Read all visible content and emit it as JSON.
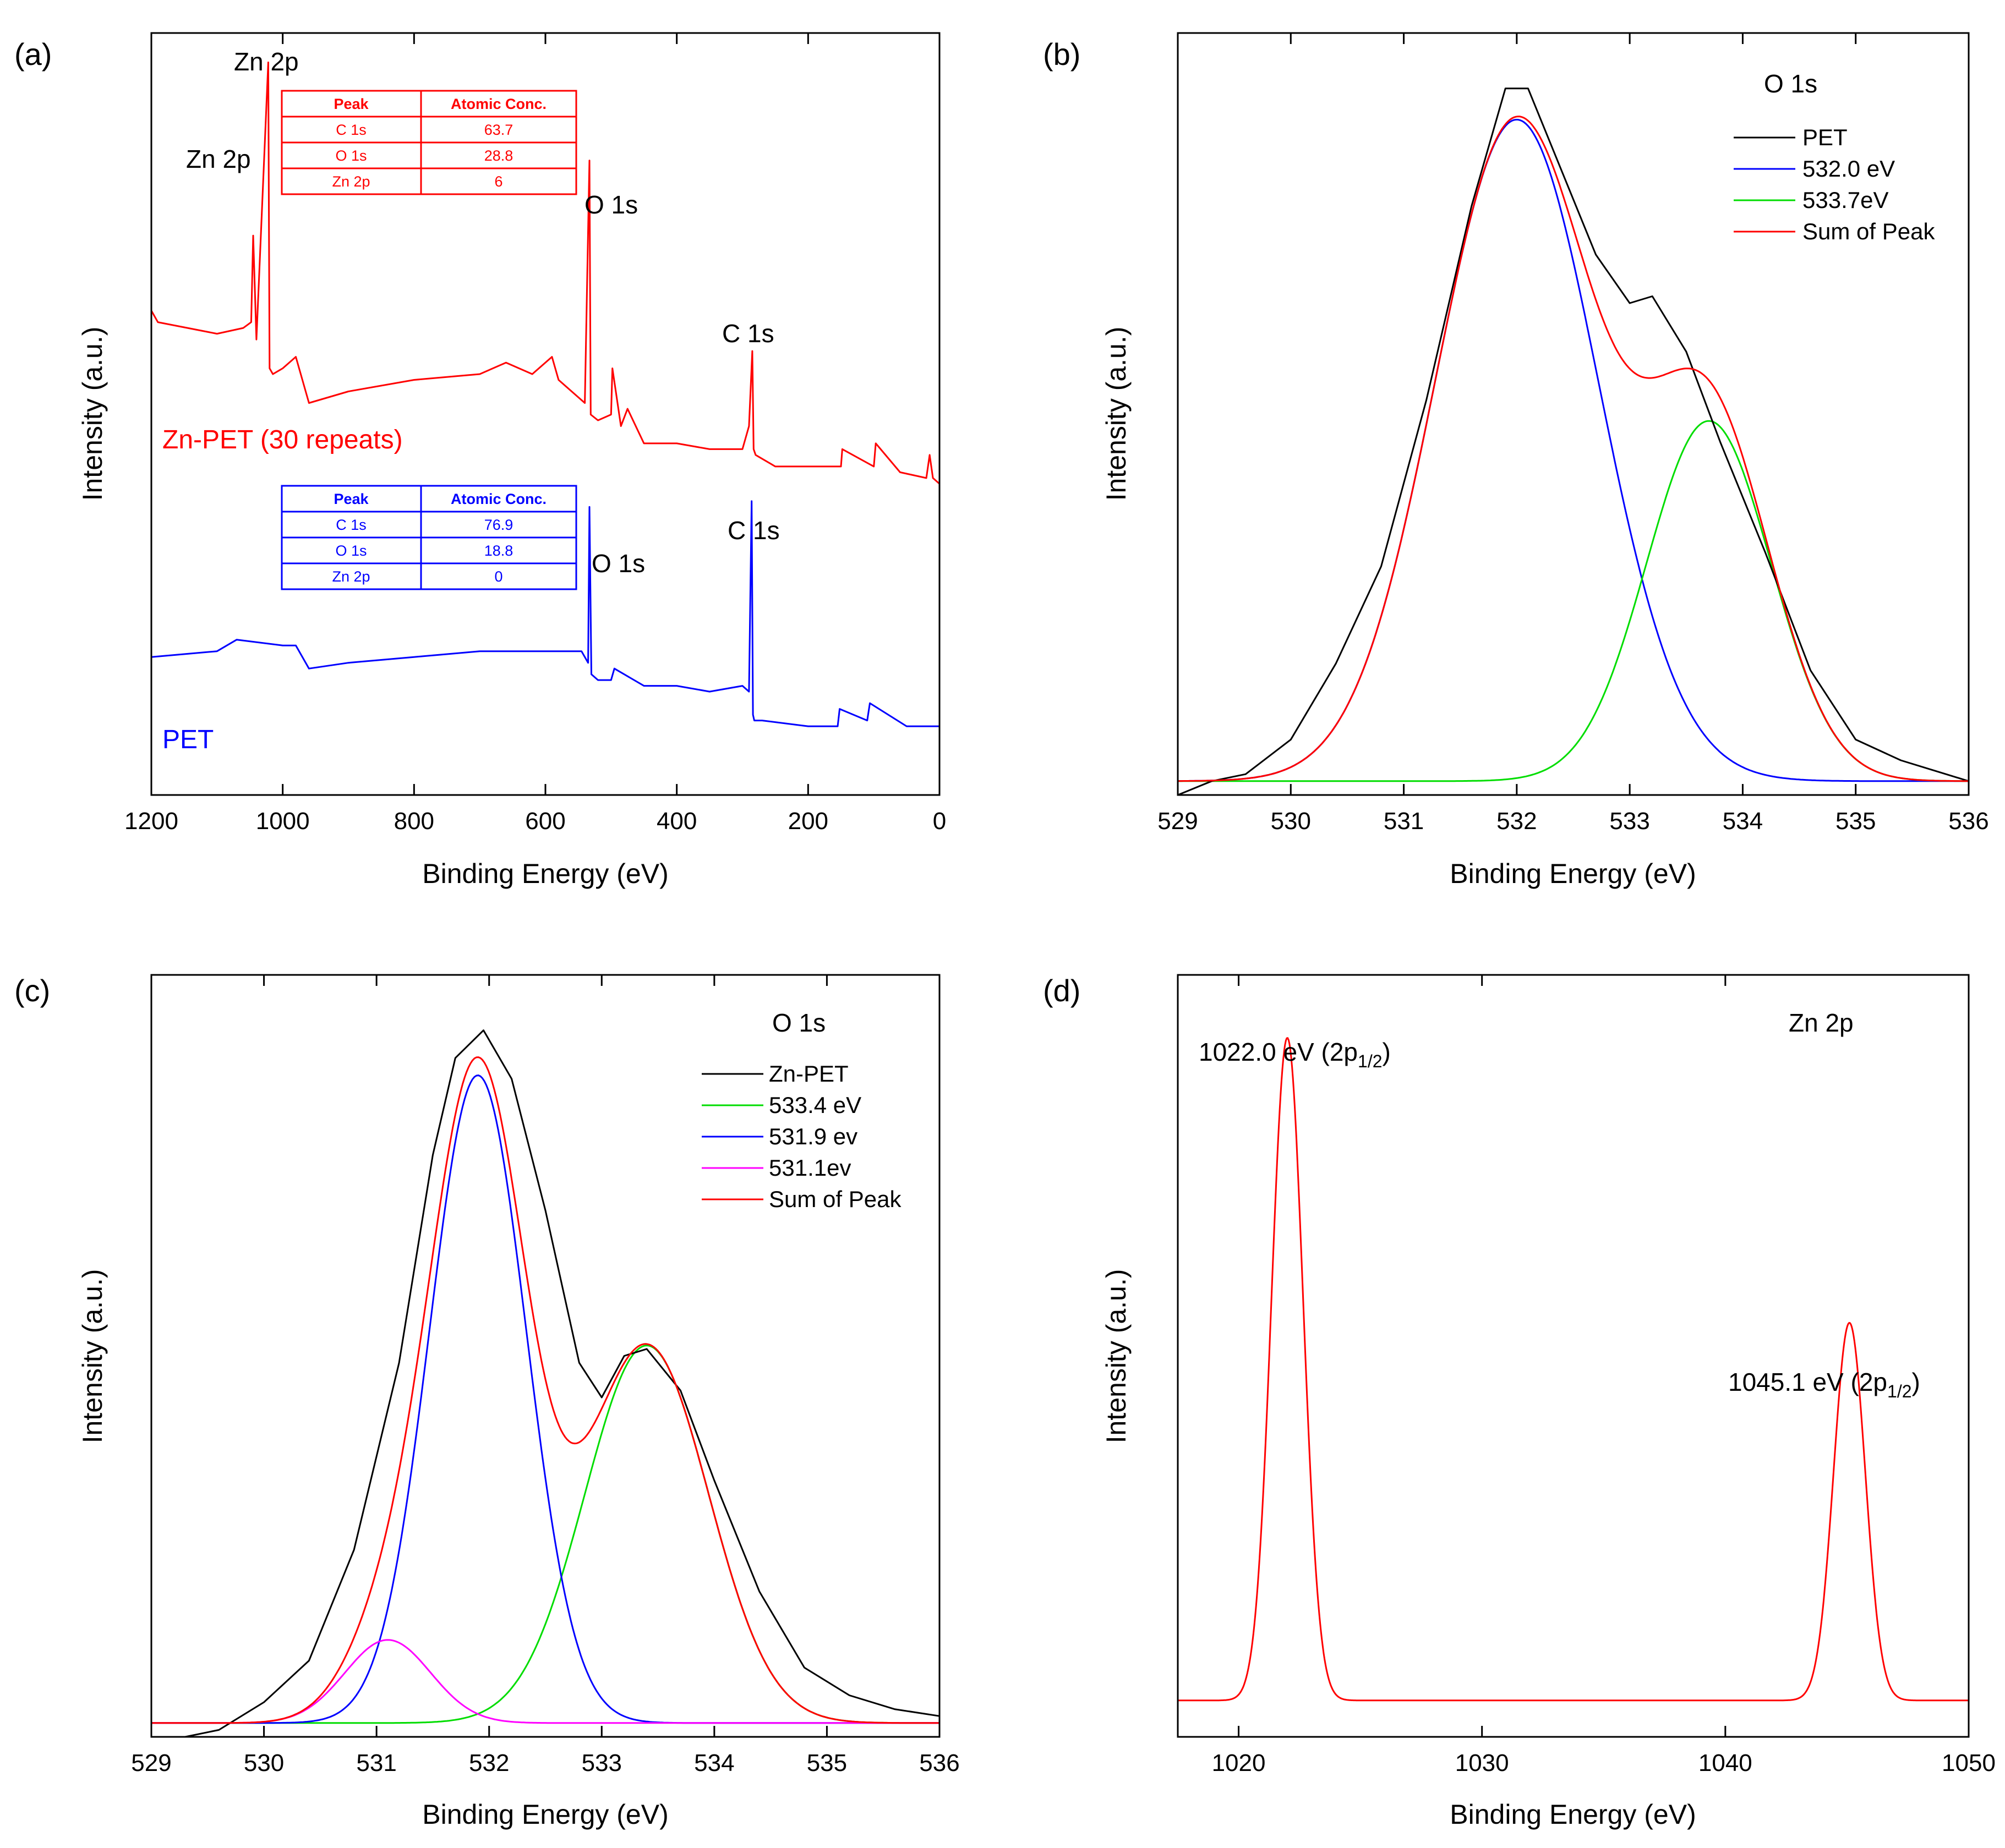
{
  "chart_data": [
    {
      "panel": "(a)",
      "type": "line",
      "xlabel": "Binding Energy (eV)",
      "ylabel": "Intensity (a.u.)",
      "xlim": [
        1200,
        0
      ],
      "xticks": [
        "1200",
        "1000",
        "800",
        "600",
        "400",
        "200",
        "0"
      ],
      "series": [
        {
          "name": "Zn-PET (30 repeats)",
          "color": "#ff0000",
          "x": [
            1200,
            1190,
            1100,
            1060,
            1048,
            1045,
            1040,
            1022,
            1020,
            1015,
            1000,
            980,
            960,
            900,
            800,
            700,
            660,
            620,
            590,
            580,
            560,
            540,
            533,
            531,
            520,
            500,
            498,
            485,
            475,
            450,
            400,
            350,
            300,
            290,
            285,
            283,
            280,
            250,
            150,
            148,
            100,
            97,
            60,
            20,
            15,
            10,
            0
          ],
          "y": [
            0.82,
            0.8,
            0.78,
            0.79,
            0.8,
            0.95,
            0.77,
            1.25,
            0.72,
            0.71,
            0.72,
            0.74,
            0.66,
            0.68,
            0.7,
            0.71,
            0.73,
            0.71,
            0.74,
            0.7,
            0.68,
            0.66,
            1.08,
            0.64,
            0.63,
            0.64,
            0.72,
            0.62,
            0.65,
            0.59,
            0.59,
            0.58,
            0.58,
            0.62,
            0.75,
            0.58,
            0.57,
            0.55,
            0.55,
            0.58,
            0.55,
            0.59,
            0.54,
            0.53,
            0.57,
            0.53,
            0.52
          ]
        },
        {
          "name": "PET",
          "color": "#0000ff",
          "x": [
            1200,
            1100,
            1070,
            1000,
            980,
            960,
            900,
            800,
            700,
            600,
            545,
            535,
            533,
            530,
            520,
            500,
            495,
            450,
            400,
            350,
            300,
            290,
            286,
            284,
            282,
            270,
            200,
            155,
            152,
            110,
            106,
            50,
            0
          ],
          "y": [
            0.22,
            0.23,
            0.25,
            0.24,
            0.24,
            0.2,
            0.21,
            0.22,
            0.23,
            0.23,
            0.23,
            0.21,
            0.48,
            0.19,
            0.18,
            0.18,
            0.2,
            0.17,
            0.17,
            0.16,
            0.17,
            0.16,
            0.49,
            0.12,
            0.11,
            0.11,
            0.1,
            0.1,
            0.13,
            0.11,
            0.14,
            0.1,
            0.1
          ]
        }
      ],
      "annotations": {
        "zn_2p_high": "Zn 2p",
        "zn_2p_low": "Zn 2p",
        "o1s_red": "O 1s",
        "c1s_red": "C 1s",
        "o1s_blue": "O 1s",
        "c1s_blue": "C 1s",
        "label_red": "Zn-PET (30 repeats)",
        "label_blue": "PET"
      },
      "tables": [
        {
          "color": "#ff0000",
          "headers": [
            "Peak",
            "Atomic Conc."
          ],
          "rows": [
            [
              "C 1s",
              "63.7"
            ],
            [
              "O 1s",
              "28.8"
            ],
            [
              "Zn 2p",
              "6"
            ]
          ]
        },
        {
          "color": "#0000ff",
          "headers": [
            "Peak",
            "Atomic Conc."
          ],
          "rows": [
            [
              "C 1s",
              "76.9"
            ],
            [
              "O 1s",
              "18.8"
            ],
            [
              "Zn 2p",
              "0"
            ]
          ]
        }
      ]
    },
    {
      "panel": "(b)",
      "type": "line",
      "title": "O 1s",
      "xlabel": "Binding Energy (eV)",
      "ylabel": "Intensity (a.u.)",
      "xlim": [
        529,
        536
      ],
      "ylim": [
        0,
        1.1
      ],
      "xticks": [
        "529",
        "530",
        "531",
        "532",
        "533",
        "534",
        "535",
        "536"
      ],
      "series": [
        {
          "name": "PET",
          "color": "#000000",
          "x": [
            529.0,
            529.3,
            529.6,
            530.0,
            530.4,
            530.8,
            531.2,
            531.6,
            531.9,
            532.1,
            532.4,
            532.7,
            533.0,
            533.2,
            533.5,
            533.8,
            534.2,
            534.6,
            535.0,
            535.4,
            535.8,
            536.0
          ],
          "y": [
            -0.02,
            0.0,
            0.01,
            0.06,
            0.17,
            0.31,
            0.55,
            0.83,
            1.0,
            1.0,
            0.88,
            0.76,
            0.69,
            0.7,
            0.62,
            0.49,
            0.33,
            0.16,
            0.06,
            0.03,
            0.01,
            0.0
          ]
        },
        {
          "name": "532.0 eV",
          "color": "#0000ff",
          "model": "gaussian",
          "center": 532.0,
          "height": 0.955,
          "sigma": 0.72
        },
        {
          "name": "533.7eV",
          "color": "#00dd00",
          "model": "gaussian",
          "center": 533.7,
          "height": 0.52,
          "sigma": 0.55
        },
        {
          "name": "Sum of Peak",
          "color": "#ff0000",
          "model": "sum"
        }
      ]
    },
    {
      "panel": "(c)",
      "type": "line",
      "title": "O 1s",
      "xlabel": "Binding Energy (eV)",
      "ylabel": "Intensity (a.u.)",
      "xlim": [
        529,
        536
      ],
      "ylim": [
        0,
        1.1
      ],
      "xticks": [
        "529",
        "530",
        "531",
        "532",
        "533",
        "534",
        "535",
        "536"
      ],
      "series": [
        {
          "name": "Zn-PET",
          "color": "#000000",
          "x": [
            529.0,
            529.3,
            529.6,
            530.0,
            530.4,
            530.8,
            531.2,
            531.5,
            531.7,
            531.95,
            532.2,
            532.5,
            532.8,
            533.0,
            533.2,
            533.4,
            533.7,
            534.0,
            534.4,
            534.8,
            535.2,
            535.6,
            536.0
          ],
          "y": [
            -0.02,
            -0.02,
            -0.01,
            0.03,
            0.09,
            0.25,
            0.52,
            0.82,
            0.96,
            1.0,
            0.93,
            0.74,
            0.52,
            0.47,
            0.53,
            0.54,
            0.48,
            0.35,
            0.19,
            0.08,
            0.04,
            0.02,
            0.01
          ]
        },
        {
          "name": "533.4 eV",
          "color": "#00dd00",
          "model": "gaussian",
          "center": 533.4,
          "height": 0.545,
          "sigma": 0.55
        },
        {
          "name": "531.9 ev",
          "color": "#0000ff",
          "model": "gaussian",
          "center": 531.9,
          "height": 0.935,
          "sigma": 0.43
        },
        {
          "name": "531.1ev",
          "color": "#ff00ff",
          "model": "gaussian",
          "center": 531.1,
          "height": 0.12,
          "sigma": 0.38
        },
        {
          "name": "Sum of Peak",
          "color": "#ff0000",
          "model": "sum"
        }
      ]
    },
    {
      "panel": "(d)",
      "type": "line",
      "title": "Zn 2p",
      "xlabel": "Binding Energy (eV)",
      "ylabel": "Intensity (a.u.)",
      "xlim": [
        1017.5,
        1050
      ],
      "ylim": [
        0,
        1.15
      ],
      "xticks": [
        "1020",
        "1030",
        "1040",
        "1050"
      ],
      "series": [
        {
          "name": "Zn 2p",
          "color": "#ff0000",
          "model": "sum-of-gaussians",
          "peaks": [
            {
              "center": 1022.0,
              "height": 1.0,
              "sigma": 0.65
            },
            {
              "center": 1045.1,
              "height": 0.57,
              "sigma": 0.65
            }
          ]
        }
      ],
      "annotations": {
        "peak1_main": "1022.0 eV (2p",
        "peak1_sub": "1/2",
        "peak1_close": ")",
        "peak2_main": "1045.1 eV (2p",
        "peak2_sub": "1/2",
        "peak2_close": ")"
      }
    }
  ]
}
